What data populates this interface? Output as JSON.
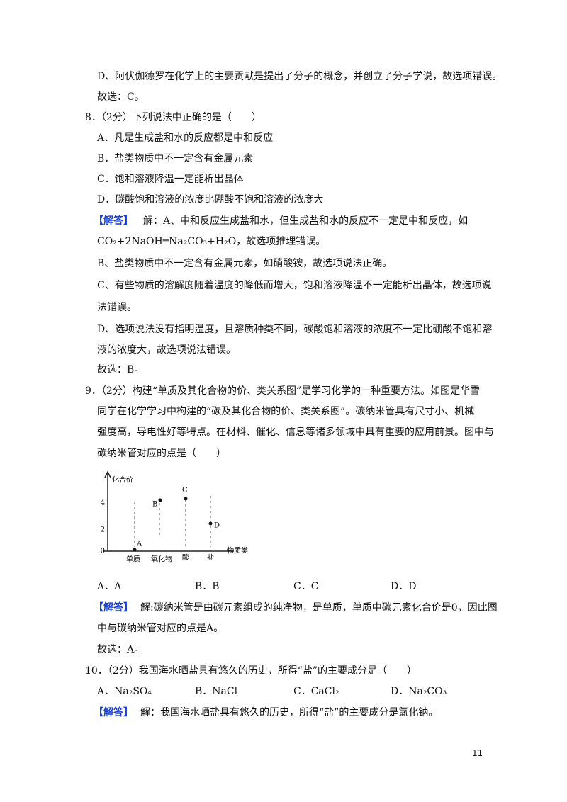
{
  "q7_tail": {
    "option_d": "D、阿伏伽德罗在化学上的主要贡献是提出了分子的概念，并创立了分子学说，故选项错误。",
    "answer": "故选：C。"
  },
  "q8": {
    "stem": "8．（2分）下列说法中正确的是（　　）",
    "options": [
      "A．凡是生成盐和水的反应都是中和反应",
      "B．盐类物质中不一定含有金属元素",
      "C．饱和溶液降温一定能析出晶体",
      "D．碳酸饱和溶液的浓度比硼酸不饱和溶液的浓度大"
    ],
    "solution_label": "【解答】",
    "solution": [
      "解：A、中和反应生成盐和水，但生成盐和水的反应不一定是中和反应，如",
      "CO₂+2NaOH═Na₂CO₃+H₂O，故选项推理错误。",
      "B、盐类物质中不一定含有金属元素，如硝酸铵，故选项说法正确。",
      "C、有些物质的溶解度随着温度的降低而增大，饱和溶液降温不一定能析出晶体，故选项说",
      "法错误。",
      "D、选项说法没有指明温度，且溶质种类不同，碳酸饱和溶液的浓度不一定比硼酸不饱和溶",
      "液的浓度大，故选项说法错误。"
    ],
    "answer": "故选：B。"
  },
  "q9": {
    "stem": [
      "9．（2分）构建“单质及其化合物的价、类关系图”是学习化学的一种重要方法。如图是华雪",
      "同学在化学学习中构建的“碳及其化合物的价、类关系图”。碳纳米管具有尺寸小、机械",
      "强度高，导电性好等特点。在材料、催化、信息等诸多领域中具有重要的应用前景。图中与",
      "碳纳米管对应的点是（　　）"
    ],
    "figure": {
      "y_axis_label": "化合价",
      "y_ticks": [
        "4",
        "2",
        "0"
      ],
      "points": [
        "A",
        "B",
        "C",
        "D"
      ],
      "x_categories": [
        "单质",
        "氧化物",
        "酸",
        "盐"
      ],
      "x_axis_label": "物质类"
    },
    "options": [
      "A．A",
      "B．B",
      "C．C",
      "D．D"
    ],
    "solution_label": "【解答】",
    "solution": [
      "解:碳纳米管是由碳元素组成的纯净物，是单质，单质中碳元素化合价是0，因此图",
      "中与碳纳米管对应的点是A。"
    ],
    "answer": "故选：A。"
  },
  "q10": {
    "stem": "10．（2分）我国海水晒盐具有悠久的历史，所得“盐”的主要成分是（　　）",
    "options": [
      "A．Na₂SO₄",
      "B．NaCl",
      "C．CaCl₂",
      "D．Na₂CO₃"
    ],
    "solution_label": "【解答】",
    "solution": [
      "解：我国海水晒盐具有悠久的历史，所得“盐”的主要成分是氯化钠。"
    ]
  },
  "page_number": "11"
}
